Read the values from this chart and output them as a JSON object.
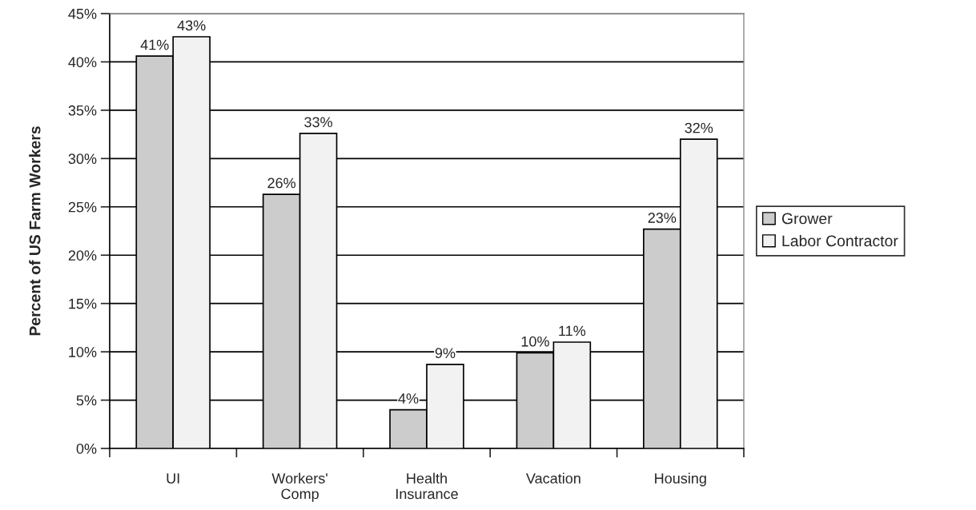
{
  "chart_data": {
    "type": "bar",
    "ylabel": "Percent of US Farm Workers",
    "categories": [
      "UI",
      "Workers' Comp",
      "Health Insurance",
      "Vacation",
      "Housing"
    ],
    "series": [
      {
        "name": "Grower",
        "color": "#cccccc",
        "values": [
          40.6,
          26.3,
          4.0,
          9.9,
          22.7
        ],
        "value_labels": [
          "41%",
          "26%",
          "4%",
          "10%",
          "23%"
        ]
      },
      {
        "name": "Labor Contractor",
        "color": "#f2f2f2",
        "values": [
          42.6,
          32.6,
          8.7,
          11.0,
          32.0
        ],
        "value_labels": [
          "43%",
          "33%",
          "9%",
          "11%",
          "32%"
        ]
      }
    ],
    "ylim": [
      0,
      45
    ],
    "yticks": [
      {
        "value": 0,
        "label": "0%"
      },
      {
        "value": 5,
        "label": "5%"
      },
      {
        "value": 10,
        "label": "10%"
      },
      {
        "value": 15,
        "label": "15%"
      },
      {
        "value": 20,
        "label": "20%"
      },
      {
        "value": 25,
        "label": "25%"
      },
      {
        "value": 30,
        "label": "30%"
      },
      {
        "value": 35,
        "label": "35%"
      },
      {
        "value": 40,
        "label": "40%"
      },
      {
        "value": 45,
        "label": "45%"
      }
    ],
    "grid": "y",
    "legend": "right"
  }
}
